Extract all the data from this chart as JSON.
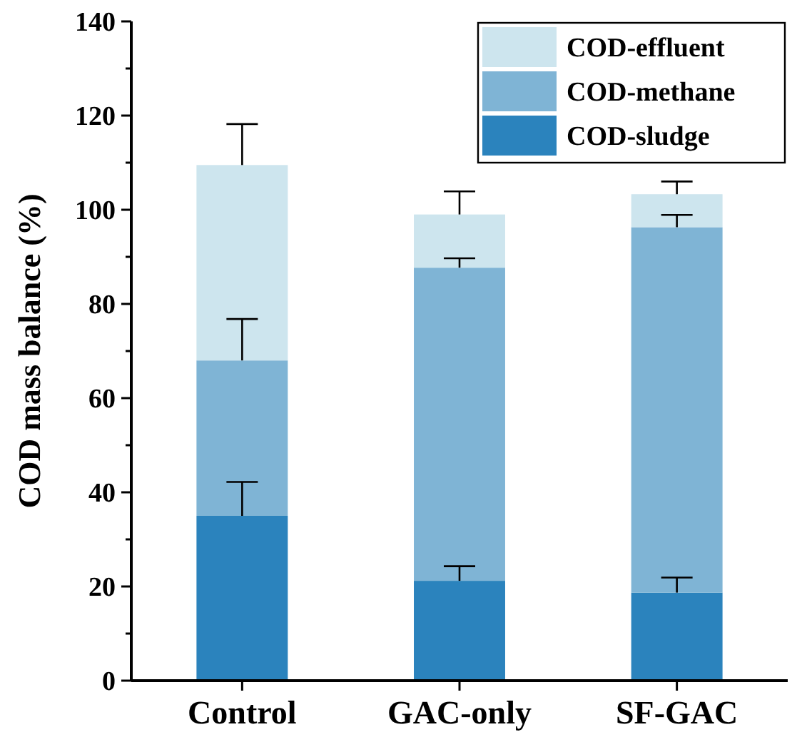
{
  "chart_data": {
    "type": "bar",
    "stacked": true,
    "ylabel": "COD mass balance (%)",
    "categories": [
      "Control",
      "GAC-only",
      "SF-GAC"
    ],
    "series": [
      {
        "name": "COD-sludge",
        "color": "#2b83bd",
        "values": [
          35,
          21.2,
          18.7
        ],
        "errors": [
          7.2,
          3.1,
          3.2
        ]
      },
      {
        "name": "COD-methane",
        "color": "#7fb4d5",
        "values": [
          33,
          66.5,
          77.6
        ],
        "errors": [
          8.8,
          2,
          2.6
        ]
      },
      {
        "name": "COD-effluent",
        "color": "#cde5ee",
        "values": [
          41.5,
          11.3,
          7
        ],
        "errors": [
          8.7,
          4.9,
          2.7
        ]
      }
    ],
    "ylim": [
      0,
      140
    ],
    "yticks": [
      0,
      {
        "value": 10,
        "label": null
      },
      20,
      {
        "value": 30,
        "label": null
      },
      40,
      {
        "value": 50,
        "label": null
      },
      60,
      {
        "value": 70,
        "label": null
      },
      80,
      {
        "value": 90,
        "label": null
      },
      100,
      {
        "value": 110,
        "label": null
      },
      120,
      {
        "value": 130,
        "label": null
      },
      140
    ],
    "grid": false,
    "legend": "top right"
  }
}
